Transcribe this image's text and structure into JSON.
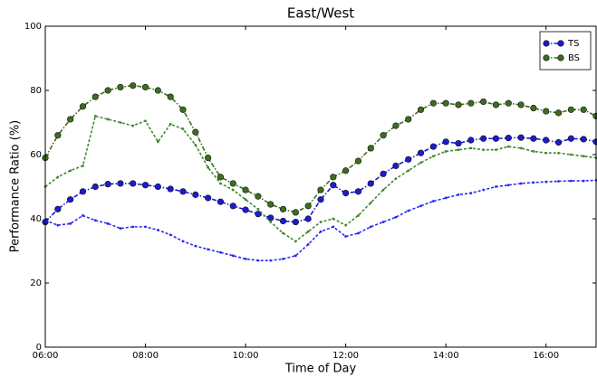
{
  "chart_data": {
    "type": "line",
    "title": "East/West",
    "xlabel": "Time of Day",
    "ylabel": "Performance Ratio (%)",
    "x": [
      6,
      6.25,
      6.5,
      6.75,
      7,
      7.25,
      7.5,
      7.75,
      8,
      8.25,
      8.5,
      8.75,
      9,
      9.25,
      9.5,
      9.75,
      10,
      10.25,
      10.5,
      10.75,
      11,
      11.25,
      11.5,
      11.75,
      12,
      12.25,
      12.5,
      12.75,
      13,
      13.25,
      13.5,
      13.75,
      14,
      14.25,
      14.5,
      14.75,
      15,
      15.25,
      15.5,
      15.75,
      16,
      16.25,
      16.5,
      16.75,
      17
    ],
    "xlim": [
      6,
      17
    ],
    "xticks": [
      {
        "value": 6,
        "label": "06:00"
      },
      {
        "value": 8,
        "label": "08:00"
      },
      {
        "value": 10,
        "label": "10:00"
      },
      {
        "value": 12,
        "label": "12:00"
      },
      {
        "value": 14,
        "label": "14:00"
      },
      {
        "value": 16,
        "label": "16:00"
      }
    ],
    "ylim": [
      0,
      100
    ],
    "yticks": [
      0,
      20,
      40,
      60,
      80,
      100
    ],
    "grid": false,
    "legend": "upper right",
    "series": [
      {
        "name": "TS",
        "color": "#1c1ccf",
        "marker": "o",
        "linestyle": "-.",
        "values": [
          39,
          43,
          46,
          48.5,
          50,
          50.8,
          51,
          51,
          50.5,
          50,
          49.3,
          48.5,
          47.5,
          46.5,
          45.3,
          44,
          42.8,
          41.5,
          40.3,
          39.3,
          39,
          40,
          46,
          50.5,
          48,
          48.5,
          51,
          54,
          56.5,
          58.5,
          60.5,
          62.5,
          64,
          63.5,
          64.5,
          65,
          65,
          65.2,
          65.3,
          65,
          64.5,
          63.8,
          65,
          64.8,
          64
        ]
      },
      {
        "name": "BS",
        "color": "#3b6e1e",
        "marker": "o",
        "linestyle": "-.",
        "values": [
          59,
          66,
          71,
          75,
          78,
          80,
          81,
          81.5,
          81,
          80,
          78,
          74,
          67,
          59,
          53,
          51,
          49,
          47,
          44.5,
          43,
          42,
          44,
          49,
          53,
          55,
          58,
          62,
          66,
          69,
          71,
          74,
          76,
          76,
          75.5,
          76,
          76.5,
          75.5,
          76,
          75.5,
          74.5,
          73.5,
          73,
          74,
          74,
          72
        ]
      },
      {
        "color": "#2a2af0",
        "marker": ".",
        "linestyle": "--",
        "values": [
          39.5,
          38,
          38.5,
          41,
          39.5,
          38.5,
          37,
          37.5,
          37.5,
          36.5,
          35,
          33,
          31.5,
          30.5,
          29.5,
          28.5,
          27.5,
          27,
          27,
          27.5,
          28.5,
          32,
          36,
          37.5,
          34.5,
          35.5,
          37.5,
          39,
          40.5,
          42.5,
          44,
          45.5,
          46.5,
          47.5,
          48,
          49,
          50,
          50.5,
          51,
          51.3,
          51.5,
          51.7,
          51.8,
          51.8,
          52
        ]
      },
      {
        "color": "#3f8a2a",
        "marker": ".",
        "linestyle": "--",
        "values": [
          50,
          53,
          55,
          56.5,
          72,
          71,
          70,
          69,
          70.5,
          64,
          69.5,
          68,
          63,
          56,
          51,
          49,
          46,
          43,
          39,
          35.5,
          33,
          36,
          39,
          40,
          38,
          41,
          45,
          49,
          52.5,
          55,
          57.5,
          59.5,
          61,
          61.5,
          62,
          61.5,
          61.5,
          62.5,
          62,
          61,
          60.5,
          60.5,
          60,
          59.5,
          59
        ]
      }
    ]
  }
}
